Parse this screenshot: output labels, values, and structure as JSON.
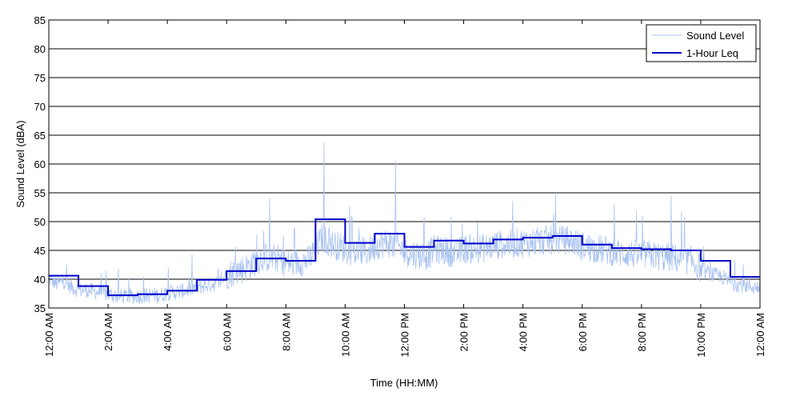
{
  "chart_data": {
    "type": "line",
    "title": "",
    "xlabel": "Time (HH:MM)",
    "ylabel": "Sound Level (dBA)",
    "ylim": [
      35,
      85
    ],
    "xlim": [
      0,
      24
    ],
    "x_tick_labels": [
      "12:00 AM",
      "2:00 AM",
      "4:00 AM",
      "6:00 AM",
      "8:00 AM",
      "10:00 AM",
      "12:00 PM",
      "2:00 PM",
      "4:00 PM",
      "6:00 PM",
      "8:00 PM",
      "10:00 PM",
      "12:00 AM"
    ],
    "y_ticks": [
      35,
      40,
      45,
      50,
      55,
      60,
      65,
      70,
      75,
      80,
      85
    ],
    "grid": "horizontal",
    "legend_position": "top-right",
    "colors": {
      "sound_level": "#a9c3f0",
      "leq": "#0000cc"
    },
    "series": [
      {
        "name": "Sound Level",
        "style": "thin light-blue noisy line",
        "x_hours": [
          0,
          0.25,
          0.5,
          0.75,
          1,
          1.25,
          1.5,
          1.75,
          2,
          2.25,
          2.5,
          2.75,
          3,
          3.25,
          3.5,
          3.75,
          4,
          4.25,
          4.5,
          4.75,
          5,
          5.25,
          5.5,
          5.75,
          6,
          6.25,
          6.5,
          6.75,
          7,
          7.25,
          7.5,
          7.75,
          8,
          8.25,
          8.5,
          8.75,
          9,
          9.25,
          9.5,
          9.75,
          10,
          10.25,
          10.5,
          10.75,
          11,
          11.25,
          11.5,
          11.75,
          12,
          12.25,
          12.5,
          12.75,
          13,
          13.25,
          13.5,
          13.75,
          14,
          14.25,
          14.5,
          14.75,
          15,
          15.25,
          15.5,
          15.75,
          16,
          16.25,
          16.5,
          16.75,
          17,
          17.25,
          17.5,
          17.75,
          18,
          18.25,
          18.5,
          18.75,
          19,
          19.25,
          19.5,
          19.75,
          20,
          20.25,
          20.5,
          20.75,
          21,
          21.25,
          21.5,
          21.75,
          22,
          22.25,
          22.5,
          22.75,
          23,
          23.25,
          23.5,
          23.75,
          24
        ],
        "values": [
          40,
          39,
          39.5,
          38.5,
          38,
          38,
          37.8,
          37.5,
          37.2,
          37,
          36.9,
          36.9,
          37,
          37,
          37.1,
          37.1,
          37.5,
          37.6,
          37.8,
          38,
          38.5,
          38.7,
          39,
          39.2,
          40.5,
          41,
          41.5,
          42,
          43,
          43.5,
          43.5,
          43.2,
          42.5,
          42.5,
          42.8,
          43,
          45,
          47,
          46,
          45.5,
          45,
          44.5,
          44.5,
          44.5,
          45.5,
          46,
          46,
          45.5,
          44.5,
          44.2,
          44,
          43.8,
          44.8,
          44.8,
          44.5,
          44.2,
          45,
          45,
          45,
          45.2,
          45.5,
          45.8,
          45.8,
          46,
          46,
          46.2,
          46.2,
          46.5,
          46.5,
          46.5,
          46.5,
          46.2,
          45.5,
          45.2,
          45,
          44.8,
          44.5,
          44.3,
          44.2,
          44,
          44,
          44,
          43.8,
          43.5,
          43.5,
          43.2,
          43,
          42.8,
          41.5,
          41,
          40.5,
          40.2,
          39.2,
          39,
          38.8,
          38.5,
          38.5
        ],
        "spikes": [
          {
            "x": 9.28,
            "y": 63.7
          },
          {
            "x": 11.7,
            "y": 60.5
          },
          {
            "x": 17.1,
            "y": 55
          },
          {
            "x": 21.0,
            "y": 54.5
          },
          {
            "x": 7.45,
            "y": 54
          }
        ]
      },
      {
        "name": "1-Hour Leq",
        "style": "thick blue step line",
        "x_hours": [
          0,
          1,
          2,
          3,
          4,
          5,
          6,
          7,
          8,
          9,
          10,
          11,
          12,
          13,
          14,
          15,
          16,
          17,
          18,
          19,
          20,
          21,
          22,
          23
        ],
        "values": [
          40.6,
          38.8,
          37.2,
          37.4,
          38.0,
          39.9,
          41.4,
          43.6,
          43.2,
          50.4,
          46.3,
          47.9,
          45.6,
          46.7,
          46.2,
          46.9,
          47.2,
          47.5,
          46.0,
          45.4,
          45.2,
          45.0,
          43.2,
          40.4
        ]
      }
    ]
  }
}
